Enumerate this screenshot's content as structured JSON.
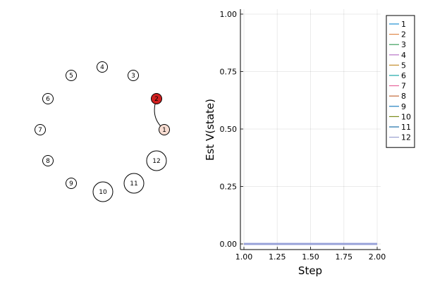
{
  "chart_data": [
    {
      "type": "graph",
      "nodes": [
        {
          "label": "1",
          "fill": "#f8ddd2",
          "size": "small"
        },
        {
          "label": "2",
          "fill": "#d02020",
          "size": "small"
        },
        {
          "label": "3",
          "fill": "#ffffff",
          "size": "small"
        },
        {
          "label": "4",
          "fill": "#ffffff",
          "size": "small"
        },
        {
          "label": "5",
          "fill": "#ffffff",
          "size": "small"
        },
        {
          "label": "6",
          "fill": "#ffffff",
          "size": "small"
        },
        {
          "label": "7",
          "fill": "#ffffff",
          "size": "small"
        },
        {
          "label": "8",
          "fill": "#ffffff",
          "size": "small"
        },
        {
          "label": "9",
          "fill": "#ffffff",
          "size": "small"
        },
        {
          "label": "10",
          "fill": "#ffffff",
          "size": "large"
        },
        {
          "label": "11",
          "fill": "#ffffff",
          "size": "large"
        },
        {
          "label": "12",
          "fill": "#ffffff",
          "size": "large"
        }
      ],
      "edges": [
        {
          "from": "2",
          "to": "1"
        }
      ]
    },
    {
      "type": "line",
      "xlabel": "Step",
      "ylabel": "Est V(state)",
      "xlim": [
        1.0,
        2.0
      ],
      "ylim": [
        0.0,
        1.0
      ],
      "xticks": [
        "1.00",
        "1.25",
        "1.50",
        "1.75",
        "2.00"
      ],
      "yticks": [
        "0.00",
        "0.25",
        "0.50",
        "0.75",
        "1.00"
      ],
      "grid": true,
      "legend_position": "top-right",
      "x": [
        1,
        2
      ],
      "series": [
        {
          "name": "1",
          "values": [
            0,
            0
          ],
          "color": "#1f8fd1"
        },
        {
          "name": "2",
          "values": [
            0,
            0
          ],
          "color": "#e0884a"
        },
        {
          "name": "3",
          "values": [
            0,
            0
          ],
          "color": "#3c9e5c"
        },
        {
          "name": "4",
          "values": [
            0,
            0
          ],
          "color": "#b873c6"
        },
        {
          "name": "5",
          "values": [
            0,
            0
          ],
          "color": "#c48f2e"
        },
        {
          "name": "6",
          "values": [
            0,
            0
          ],
          "color": "#1aa7a7"
        },
        {
          "name": "7",
          "values": [
            0,
            0
          ],
          "color": "#e8689d"
        },
        {
          "name": "8",
          "values": [
            0,
            0
          ],
          "color": "#c36a3a"
        },
        {
          "name": "9",
          "values": [
            0,
            0
          ],
          "color": "#1f7fbf"
        },
        {
          "name": "10",
          "values": [
            0,
            0
          ],
          "color": "#7a8a1a"
        },
        {
          "name": "11",
          "values": [
            0,
            0
          ],
          "color": "#1b6fa8"
        },
        {
          "name": "12",
          "values": [
            0,
            0
          ],
          "color": "#9aa0d0"
        }
      ]
    }
  ]
}
